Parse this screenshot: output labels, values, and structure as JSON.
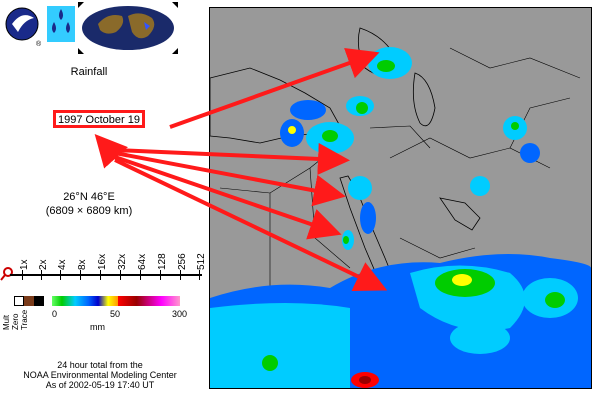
{
  "header": {
    "logo_icon": "nasa-trmm-logo-icon",
    "rain_icon": "raindrops-icon",
    "globe_icon": "world-globe-icon"
  },
  "panel": {
    "title": "Rainfall",
    "date": "1997 October 19",
    "coords": "26°N 46°E",
    "extent": "(6809 × 6809 km)"
  },
  "zoom": {
    "labels": [
      "1x",
      "2x",
      "4x",
      "8x",
      "16x",
      "32x",
      "64x",
      "128",
      "256",
      "512"
    ],
    "icon": "magnifier-icon"
  },
  "legend": {
    "left_labels": [
      "Mult",
      "Zero",
      "Trace"
    ],
    "ticks": [
      "0",
      "50",
      "300"
    ],
    "unit": "mm",
    "colors": {
      "water": "#ffffff",
      "brown": "#7a3b1a",
      "black": "#000000",
      "light_green": "#66ff66",
      "green": "#00cc00",
      "cyan": "#00ccff",
      "blue": "#0066ff",
      "dark_blue": "#0000cc",
      "yellow": "#ffff00",
      "orange": "#ff9900",
      "red": "#ff0000",
      "dark_red": "#990000",
      "magenta": "#ff00ff",
      "pink": "#ff99cc"
    }
  },
  "footer": {
    "line1": "24 hour total from the",
    "line2": "NOAA Environmental Modeling Center",
    "line3": "As of 2002-05-19 17:40 UT"
  },
  "map": {
    "land_color": "#999999",
    "arrow_color": "#ff1a1a"
  }
}
